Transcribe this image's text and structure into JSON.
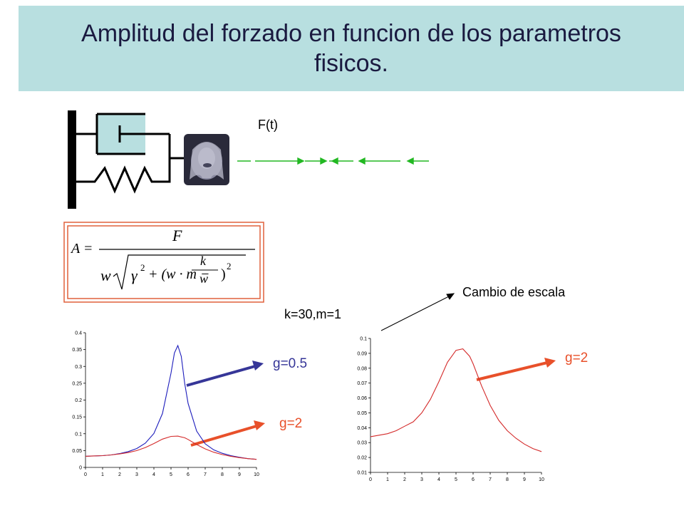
{
  "slide": {
    "title": "Amplitud del forzado en funcion de los parametros\nfisicos.",
    "force_label": "F(t)",
    "params_label": "k=30,m=1",
    "scale_note": "Cambio de escala",
    "formula": {
      "lhs": "A =",
      "numerator": "F",
      "w": "w",
      "gamma": "γ",
      "exp": "2",
      "mid": "+ (w · m −",
      "frac_k": "k",
      "frac_w": "w",
      "close": ")"
    },
    "labels": {
      "left_g05": "g=0.5",
      "left_g2": "g=2",
      "right_g2": "g=2"
    },
    "colors": {
      "title_bg": "#b8dfe0",
      "title_text": "#1a1a40",
      "blue_curve": "#1c1cbc",
      "red_curve": "#d42a2a",
      "orange_label": "#e8502a",
      "blue_arrow": "#363698",
      "green_arrow": "#22b822",
      "formula_border": "#e0603c",
      "damper_fill": "#b8dfe0"
    },
    "icons": [
      "damper-icon",
      "spring-icon",
      "wall-icon",
      "face-photo",
      "force-arrows-icon"
    ]
  },
  "chart_data": [
    {
      "type": "line",
      "title": "",
      "xlabel": "",
      "ylabel": "",
      "xlim": [
        0,
        10
      ],
      "ylim": [
        0,
        0.4
      ],
      "x_ticks": [
        "0",
        "1",
        "2",
        "3",
        "4",
        "5",
        "6",
        "7",
        "8",
        "9",
        "10"
      ],
      "y_ticks": [
        "0",
        "0.05",
        "0.1",
        "0.15",
        "0.2",
        "0.25",
        "0.3",
        "0.35",
        "0.4"
      ],
      "grid": false,
      "series": [
        {
          "name": "g=0.5",
          "color": "#1c1cbc",
          "x": [
            0,
            0.5,
            1,
            1.5,
            2,
            2.5,
            3,
            3.5,
            4,
            4.5,
            5,
            5.2,
            5.4,
            5.6,
            5.8,
            6,
            6.5,
            7,
            7.5,
            8,
            8.5,
            9,
            9.5,
            10
          ],
          "values": [
            0.033,
            0.034,
            0.035,
            0.037,
            0.041,
            0.047,
            0.056,
            0.072,
            0.101,
            0.16,
            0.28,
            0.34,
            0.362,
            0.33,
            0.25,
            0.19,
            0.108,
            0.07,
            0.052,
            0.042,
            0.035,
            0.03,
            0.026,
            0.024
          ]
        },
        {
          "name": "g=2",
          "color": "#d42a2a",
          "x": [
            0,
            0.5,
            1,
            1.5,
            2,
            2.5,
            3,
            3.5,
            4,
            4.5,
            5,
            5.4,
            5.8,
            6,
            6.5,
            7,
            7.5,
            8,
            8.5,
            9,
            9.5,
            10
          ],
          "values": [
            0.033,
            0.034,
            0.035,
            0.037,
            0.04,
            0.044,
            0.05,
            0.059,
            0.071,
            0.084,
            0.092,
            0.093,
            0.088,
            0.083,
            0.068,
            0.055,
            0.045,
            0.038,
            0.033,
            0.029,
            0.026,
            0.024
          ]
        }
      ]
    },
    {
      "type": "line",
      "title": "",
      "xlabel": "",
      "ylabel": "",
      "xlim": [
        0,
        10
      ],
      "ylim": [
        0.01,
        0.1
      ],
      "x_ticks": [
        "0",
        "1",
        "2",
        "3",
        "4",
        "5",
        "6",
        "7",
        "8",
        "9",
        "10"
      ],
      "y_ticks": [
        "0.01",
        "0.02",
        "0.03",
        "0.04",
        "0.05",
        "0.06",
        "0.07",
        "0.08",
        "0.09",
        "0.1"
      ],
      "grid": false,
      "series": [
        {
          "name": "g=2",
          "color": "#d42a2a",
          "x": [
            0,
            0.5,
            1,
            1.5,
            2,
            2.5,
            3,
            3.5,
            4,
            4.5,
            5,
            5.4,
            5.8,
            6,
            6.5,
            7,
            7.5,
            8,
            8.5,
            9,
            9.5,
            10
          ],
          "values": [
            0.034,
            0.035,
            0.036,
            0.038,
            0.041,
            0.044,
            0.05,
            0.059,
            0.071,
            0.084,
            0.092,
            0.093,
            0.088,
            0.083,
            0.068,
            0.055,
            0.045,
            0.038,
            0.033,
            0.029,
            0.026,
            0.024
          ]
        }
      ]
    }
  ]
}
